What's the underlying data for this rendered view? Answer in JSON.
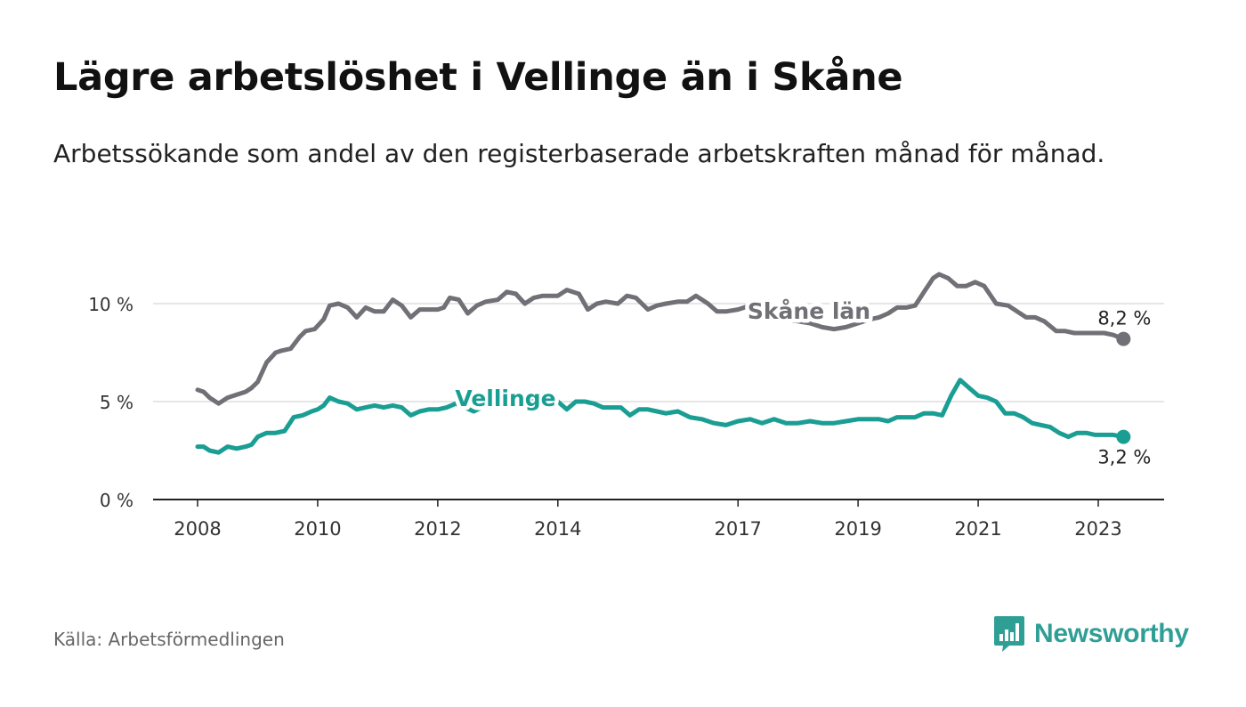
{
  "header": {
    "title": "Lägre arbetslöshet i Vellinge än i Skåne",
    "subtitle": "Arbetssökande som andel av den registerbaserade arbetskraften månad för månad."
  },
  "footer": {
    "source": "Källa: Arbetsförmedlingen",
    "brand": "Newsworthy",
    "brand_icon": "bar-chart-bubble-icon"
  },
  "chart_data": {
    "type": "line",
    "title": "Lägre arbetslöshet i Vellinge än i Skåne",
    "xlabel": "",
    "ylabel": "",
    "x_range": [
      2008,
      2023.5
    ],
    "ylim": [
      0,
      12.5
    ],
    "y_ticks": [
      0,
      5,
      10
    ],
    "y_tick_labels": [
      "0 %",
      "5 %",
      "10 %"
    ],
    "x_ticks": [
      2008,
      2010,
      2012,
      2014,
      2017,
      2019,
      2021,
      2023
    ],
    "x_tick_labels": [
      "2008",
      "2010",
      "2012",
      "2014",
      "2017",
      "2019",
      "2021",
      "2023"
    ],
    "grid": true,
    "legend": "inline labels",
    "series": [
      {
        "name": "Skåne län",
        "color": "#707076",
        "end_label": "8,2 %",
        "x": [
          2008.0,
          2008.1,
          2008.2,
          2008.35,
          2008.5,
          2008.6,
          2008.8,
          2008.9,
          2009.0,
          2009.15,
          2009.3,
          2009.4,
          2009.55,
          2009.7,
          2009.8,
          2009.95,
          2010.1,
          2010.2,
          2010.35,
          2010.5,
          2010.65,
          2010.8,
          2010.95,
          2011.1,
          2011.25,
          2011.4,
          2011.55,
          2011.7,
          2011.85,
          2012.0,
          2012.1,
          2012.2,
          2012.35,
          2012.5,
          2012.65,
          2012.8,
          2013.0,
          2013.15,
          2013.3,
          2013.45,
          2013.6,
          2013.75,
          2013.9,
          2014.0,
          2014.15,
          2014.35,
          2014.5,
          2014.65,
          2014.8,
          2015.0,
          2015.15,
          2015.3,
          2015.5,
          2015.65,
          2015.8,
          2016.0,
          2016.15,
          2016.3,
          2016.5,
          2016.65,
          2016.8,
          2017.0,
          2017.2,
          2017.4,
          2017.6,
          2017.8,
          2018.0,
          2018.2,
          2018.4,
          2018.6,
          2018.8,
          2019.0,
          2019.2,
          2019.35,
          2019.5,
          2019.65,
          2019.8,
          2019.95,
          2020.1,
          2020.25,
          2020.35,
          2020.5,
          2020.65,
          2020.8,
          2020.95,
          2021.1,
          2021.3,
          2021.5,
          2021.65,
          2021.8,
          2021.95,
          2022.1,
          2022.3,
          2022.45,
          2022.6,
          2022.75,
          2022.9,
          2023.0,
          2023.1,
          2023.25,
          2023.42
        ],
        "values": [
          5.6,
          5.5,
          5.2,
          4.9,
          5.2,
          5.3,
          5.5,
          5.7,
          6.0,
          7.0,
          7.5,
          7.6,
          7.7,
          8.3,
          8.6,
          8.7,
          9.2,
          9.9,
          10.0,
          9.8,
          9.3,
          9.8,
          9.6,
          9.6,
          10.2,
          9.9,
          9.3,
          9.7,
          9.7,
          9.7,
          9.8,
          10.3,
          10.2,
          9.5,
          9.9,
          10.1,
          10.2,
          10.6,
          10.5,
          10.0,
          10.3,
          10.4,
          10.4,
          10.4,
          10.7,
          10.5,
          9.7,
          10.0,
          10.1,
          10.0,
          10.4,
          10.3,
          9.7,
          9.9,
          10.0,
          10.1,
          10.1,
          10.4,
          10.0,
          9.6,
          9.6,
          9.7,
          9.9,
          9.6,
          9.4,
          9.2,
          9.1,
          9.0,
          8.8,
          8.7,
          8.8,
          9.0,
          9.2,
          9.3,
          9.5,
          9.8,
          9.8,
          9.9,
          10.6,
          11.3,
          11.5,
          11.3,
          10.9,
          10.9,
          11.1,
          10.9,
          10.0,
          9.9,
          9.6,
          9.3,
          9.3,
          9.1,
          8.6,
          8.6,
          8.5,
          8.5,
          8.5,
          8.5,
          8.5,
          8.4,
          8.2
        ]
      },
      {
        "name": "Vellinge",
        "color": "#1a9e93",
        "end_label": "3,2 %",
        "x": [
          2008.0,
          2008.1,
          2008.2,
          2008.35,
          2008.5,
          2008.65,
          2008.8,
          2008.9,
          2009.0,
          2009.15,
          2009.3,
          2009.45,
          2009.6,
          2009.75,
          2009.9,
          2010.0,
          2010.1,
          2010.2,
          2010.35,
          2010.5,
          2010.65,
          2010.8,
          2010.95,
          2011.1,
          2011.25,
          2011.4,
          2011.55,
          2011.7,
          2011.85,
          2012.0,
          2012.15,
          2012.3,
          2012.45,
          2012.6,
          2012.8,
          2013.0,
          2013.2,
          2013.4,
          2013.6,
          2013.8,
          2014.0,
          2014.15,
          2014.3,
          2014.45,
          2014.6,
          2014.75,
          2014.9,
          2015.05,
          2015.2,
          2015.35,
          2015.5,
          2015.65,
          2015.8,
          2016.0,
          2016.2,
          2016.4,
          2016.6,
          2016.8,
          2017.0,
          2017.2,
          2017.4,
          2017.6,
          2017.8,
          2018.0,
          2018.2,
          2018.4,
          2018.6,
          2018.8,
          2019.0,
          2019.2,
          2019.35,
          2019.5,
          2019.65,
          2019.8,
          2019.95,
          2020.1,
          2020.25,
          2020.4,
          2020.55,
          2020.7,
          2020.85,
          2021.0,
          2021.15,
          2021.3,
          2021.45,
          2021.6,
          2021.75,
          2021.9,
          2022.05,
          2022.2,
          2022.35,
          2022.5,
          2022.65,
          2022.8,
          2022.95,
          2023.1,
          2023.25,
          2023.42
        ],
        "values": [
          2.7,
          2.7,
          2.5,
          2.4,
          2.7,
          2.6,
          2.7,
          2.8,
          3.2,
          3.4,
          3.4,
          3.5,
          4.2,
          4.3,
          4.5,
          4.6,
          4.8,
          5.2,
          5.0,
          4.9,
          4.6,
          4.7,
          4.8,
          4.7,
          4.8,
          4.7,
          4.3,
          4.5,
          4.6,
          4.6,
          4.7,
          4.9,
          4.7,
          4.5,
          4.8,
          5.0,
          5.1,
          5.1,
          5.2,
          5.3,
          5.0,
          4.6,
          5.0,
          5.0,
          4.9,
          4.7,
          4.7,
          4.7,
          4.3,
          4.6,
          4.6,
          4.5,
          4.4,
          4.5,
          4.2,
          4.1,
          3.9,
          3.8,
          4.0,
          4.1,
          3.9,
          4.1,
          3.9,
          3.9,
          4.0,
          3.9,
          3.9,
          4.0,
          4.1,
          4.1,
          4.1,
          4.0,
          4.2,
          4.2,
          4.2,
          4.4,
          4.4,
          4.3,
          5.3,
          6.1,
          5.7,
          5.3,
          5.2,
          5.0,
          4.4,
          4.4,
          4.2,
          3.9,
          3.8,
          3.7,
          3.4,
          3.2,
          3.4,
          3.4,
          3.3,
          3.3,
          3.3,
          3.2
        ]
      }
    ]
  }
}
